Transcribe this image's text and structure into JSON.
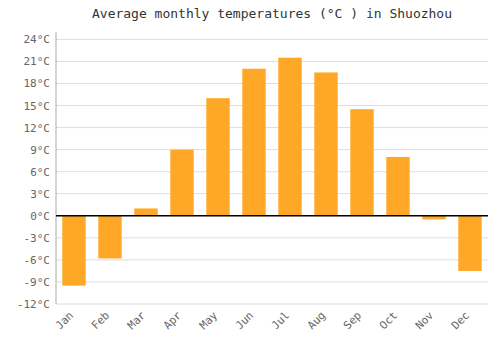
{
  "chart_data": {
    "type": "bar",
    "title": "Average monthly temperatures (°C ) in Shuozhou",
    "categories": [
      "Jan",
      "Feb",
      "Mar",
      "Apr",
      "May",
      "Jun",
      "Jul",
      "Aug",
      "Sep",
      "Oct",
      "Nov",
      "Dec"
    ],
    "values": [
      -9.5,
      -5.8,
      1.0,
      9.0,
      16.0,
      20.0,
      21.5,
      19.5,
      14.5,
      8.0,
      -0.5,
      -7.5
    ],
    "color": "#FFA726",
    "ylim": [
      -12,
      25
    ],
    "yticks": [
      {
        "value": -12,
        "label": "-12°C"
      },
      {
        "value": -9,
        "label": "-9°C"
      },
      {
        "value": -6,
        "label": "-6°C"
      },
      {
        "value": -3,
        "label": "-3°C"
      },
      {
        "value": 0,
        "label": "0°C"
      },
      {
        "value": 3,
        "label": "3°C"
      },
      {
        "value": 6,
        "label": "6°C"
      },
      {
        "value": 9,
        "label": "9°C"
      },
      {
        "value": 12,
        "label": "12°C"
      },
      {
        "value": 15,
        "label": "15°C"
      },
      {
        "value": 18,
        "label": "18°C"
      },
      {
        "value": 21,
        "label": "21°C"
      },
      {
        "value": 24,
        "label": "24°C"
      }
    ],
    "grid": true
  }
}
